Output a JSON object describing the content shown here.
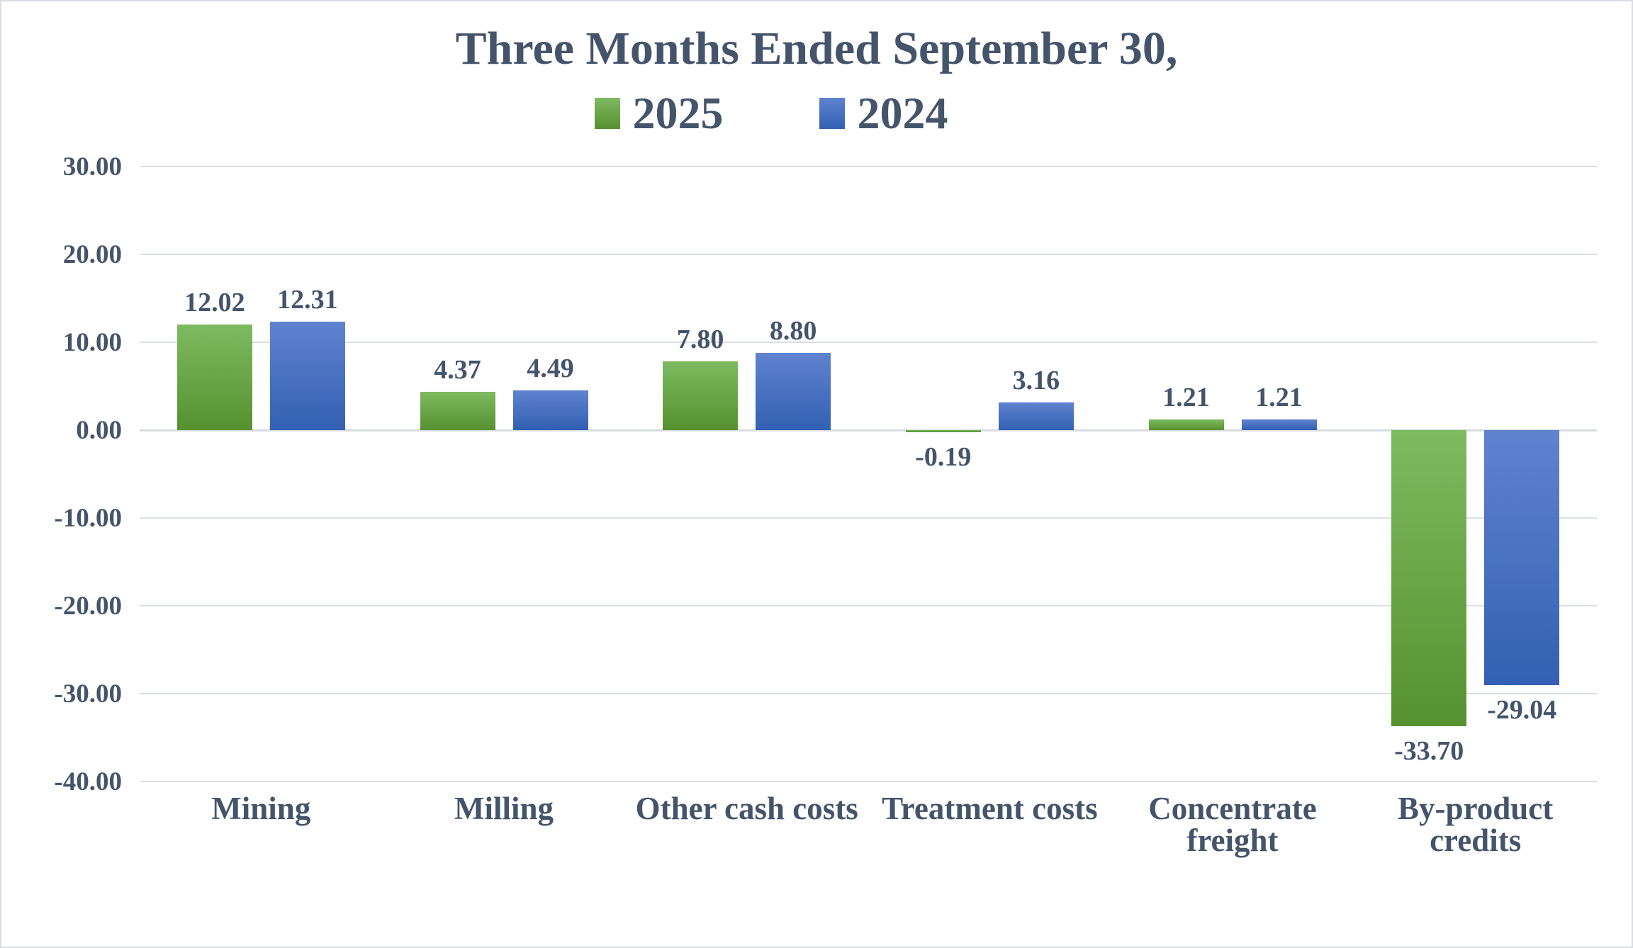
{
  "title": "Three Months Ended September 30,",
  "colors": {
    "text": "#44546a",
    "gridline": "#dbdfe6",
    "zero_line": "#d7dbe2",
    "frame_border": "#d9dde3",
    "green_top": "#7eba60",
    "green_bottom": "#569130",
    "blue_top": "#5f83cf",
    "blue_bottom": "#3360b3"
  },
  "chart_data": {
    "type": "bar",
    "title": "Three Months Ended September 30,",
    "xlabel": "",
    "ylabel": "",
    "grid": true,
    "legend_position": "top",
    "ylim": [
      -40,
      30
    ],
    "ytick_step": 10,
    "yticks": [
      {
        "value": 30,
        "label": "30.00"
      },
      {
        "value": 20,
        "label": "20.00"
      },
      {
        "value": 10,
        "label": "10.00"
      },
      {
        "value": 0,
        "label": "0.00"
      },
      {
        "value": -10,
        "label": "-10.00"
      },
      {
        "value": -20,
        "label": "-20.00"
      },
      {
        "value": -30,
        "label": "-30.00"
      },
      {
        "value": -40,
        "label": "-40.00"
      }
    ],
    "categories": [
      "Mining",
      "Milling",
      "Other cash costs",
      "Treatment costs",
      "Concentrate freight",
      "By-product credits"
    ],
    "series": [
      {
        "name": "2025",
        "color": "#6aa84f",
        "gradient": [
          "#7eba60",
          "#569130"
        ],
        "values": [
          12.02,
          4.37,
          7.8,
          -0.19,
          1.21,
          -33.7
        ],
        "value_labels": [
          "12.02",
          "4.37",
          "7.80",
          "-0.19",
          "1.21",
          "-33.70"
        ]
      },
      {
        "name": "2024",
        "color": "#4472c4",
        "gradient": [
          "#5f83cf",
          "#3360b3"
        ],
        "values": [
          12.31,
          4.49,
          8.8,
          3.16,
          1.21,
          -29.04
        ],
        "value_labels": [
          "12.31",
          "4.49",
          "8.80",
          "3.16",
          "1.21",
          "-29.04"
        ]
      }
    ]
  }
}
